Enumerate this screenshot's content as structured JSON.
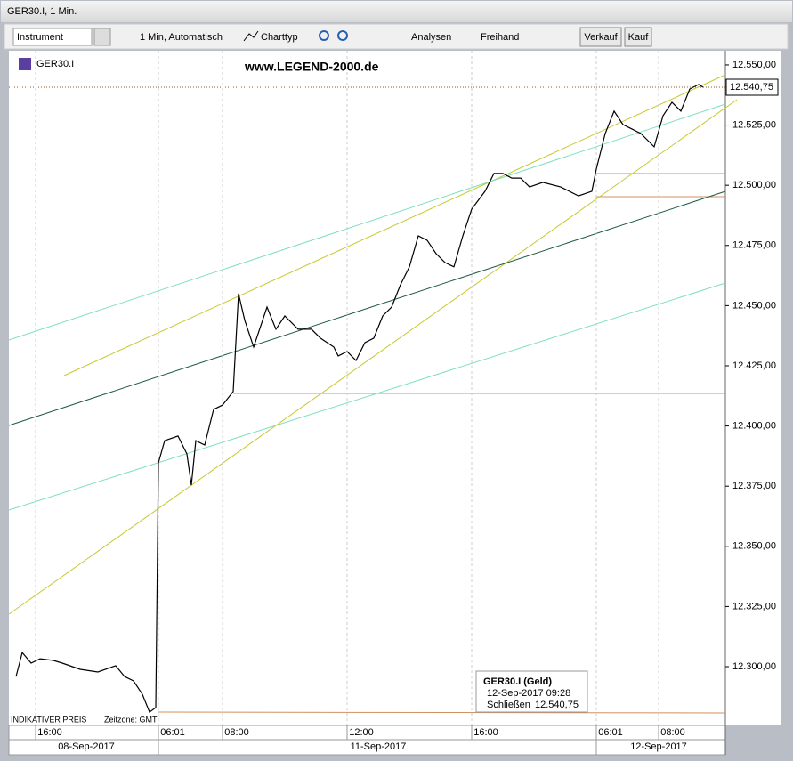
{
  "window": {
    "title": "GER30.I, 1 Min."
  },
  "toolbar": {
    "instrument": "Instrument",
    "interval": "1 Min,  Automatisch",
    "charttype": "Charttyp",
    "analysen": "Analysen",
    "freihand": "Freihand",
    "verkauf": "Verkauf",
    "kauf": "Kauf"
  },
  "chart_data": {
    "type": "line",
    "symbol": "GER30.I",
    "watermark": "www.LEGEND-2000.de",
    "last_price_label": "12.540,75",
    "x": [
      8,
      15,
      25,
      35,
      50,
      60,
      80,
      100,
      120,
      130,
      140,
      150,
      158,
      165,
      168,
      175,
      190,
      200,
      205,
      210,
      220,
      230,
      240,
      252,
      258,
      265,
      275,
      290,
      300,
      310,
      325,
      340,
      350,
      365,
      370,
      380,
      390,
      400,
      410,
      420,
      430,
      440,
      450,
      460,
      470,
      480,
      490,
      500,
      510,
      520,
      535,
      545,
      555,
      565,
      575,
      585,
      600,
      620,
      640,
      655,
      660,
      670,
      680,
      690,
      700,
      710,
      725,
      735,
      745,
      755,
      765,
      775,
      780
    ],
    "series": [
      {
        "name": "GER30.I",
        "color": "#000000",
        "values": [
          12295.9,
          12305.9,
          12301.5,
          12303.3,
          12302.6,
          12301.5,
          12298.9,
          12297.8,
          12300.4,
          12295.9,
          12294.1,
          12288.5,
          12281.1,
          12283.0,
          12384.7,
          12393.9,
          12395.8,
          12388.4,
          12375.4,
          12393.9,
          12392.1,
          12406.9,
          12408.7,
          12414.3,
          12455.0,
          12443.9,
          12432.8,
          12449.4,
          12440.2,
          12445.7,
          12440.2,
          12440.2,
          12436.5,
          12432.8,
          12429.1,
          12430.9,
          12427.2,
          12434.6,
          12436.5,
          12445.7,
          12449.4,
          12458.7,
          12466.1,
          12479.0,
          12477.1,
          12471.6,
          12467.9,
          12466.1,
          12479.0,
          12490.1,
          12497.5,
          12504.9,
          12504.9,
          12503.0,
          12503.0,
          12499.3,
          12501.2,
          12499.3,
          12495.6,
          12497.5,
          12506.7,
          12521.5,
          12530.8,
          12525.2,
          12523.4,
          12521.5,
          12516.0,
          12528.9,
          12534.5,
          12530.8,
          12540.0,
          12541.9,
          12540.75
        ]
      }
    ],
    "xlim": [
      0,
      805
    ],
    "xticks": [
      {
        "value": 30,
        "label": "16:00"
      },
      {
        "value": 168,
        "label": "06:01"
      },
      {
        "value": 240,
        "label": "08:00"
      },
      {
        "value": 380,
        "label": "12:00"
      },
      {
        "value": 520,
        "label": "16:00"
      },
      {
        "value": 660,
        "label": "06:01"
      },
      {
        "value": 730,
        "label": "08:00"
      }
    ],
    "dates": [
      "08-Sep-2017",
      "11-Sep-2017",
      "12-Sep-2017"
    ],
    "ylim": [
      12275.6,
      12555.9
    ],
    "yticks": [
      {
        "value": 12300,
        "label": "12.300,00"
      },
      {
        "value": 12325,
        "label": "12.325,00"
      },
      {
        "value": 12350,
        "label": "12.350,00"
      },
      {
        "value": 12375,
        "label": "12.375,00"
      },
      {
        "value": 12400,
        "label": "12.400,00"
      },
      {
        "value": 12425,
        "label": "12.425,00"
      },
      {
        "value": 12450,
        "label": "12.450,00"
      },
      {
        "value": 12475,
        "label": "12.475,00"
      },
      {
        "value": 12500,
        "label": "12.500,00"
      },
      {
        "value": 12525,
        "label": "12.525,00"
      },
      {
        "value": 12550,
        "label": "12.550,00"
      }
    ],
    "grid": true
  },
  "info": {
    "title": "GER30.I (Geld)",
    "time": "12-Sep-2017 09:28",
    "close_label": "Schließen",
    "close_value": "12.540,75"
  },
  "footer": {
    "price_note": "INDIKATIVER PREIS",
    "timezone": "Zeitzone: GMT"
  }
}
